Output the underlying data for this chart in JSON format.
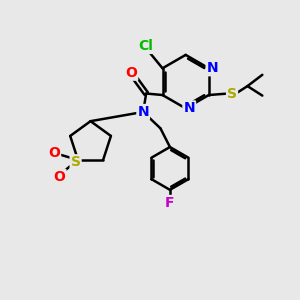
{
  "bg_color": "#e8e8e8",
  "bond_color": "#000000",
  "bond_width": 1.8,
  "figsize": [
    3.0,
    3.0
  ],
  "dpi": 100,
  "colors": {
    "Cl": "#00bb00",
    "N": "#0000ff",
    "O": "#ff0000",
    "S_thioether": "#aaaa00",
    "S_sulfonyl": "#aaaa00",
    "F": "#cc00cc",
    "C": "#000000"
  },
  "label_size": 10,
  "xlim": [
    0,
    10
  ],
  "ylim": [
    0,
    10
  ]
}
